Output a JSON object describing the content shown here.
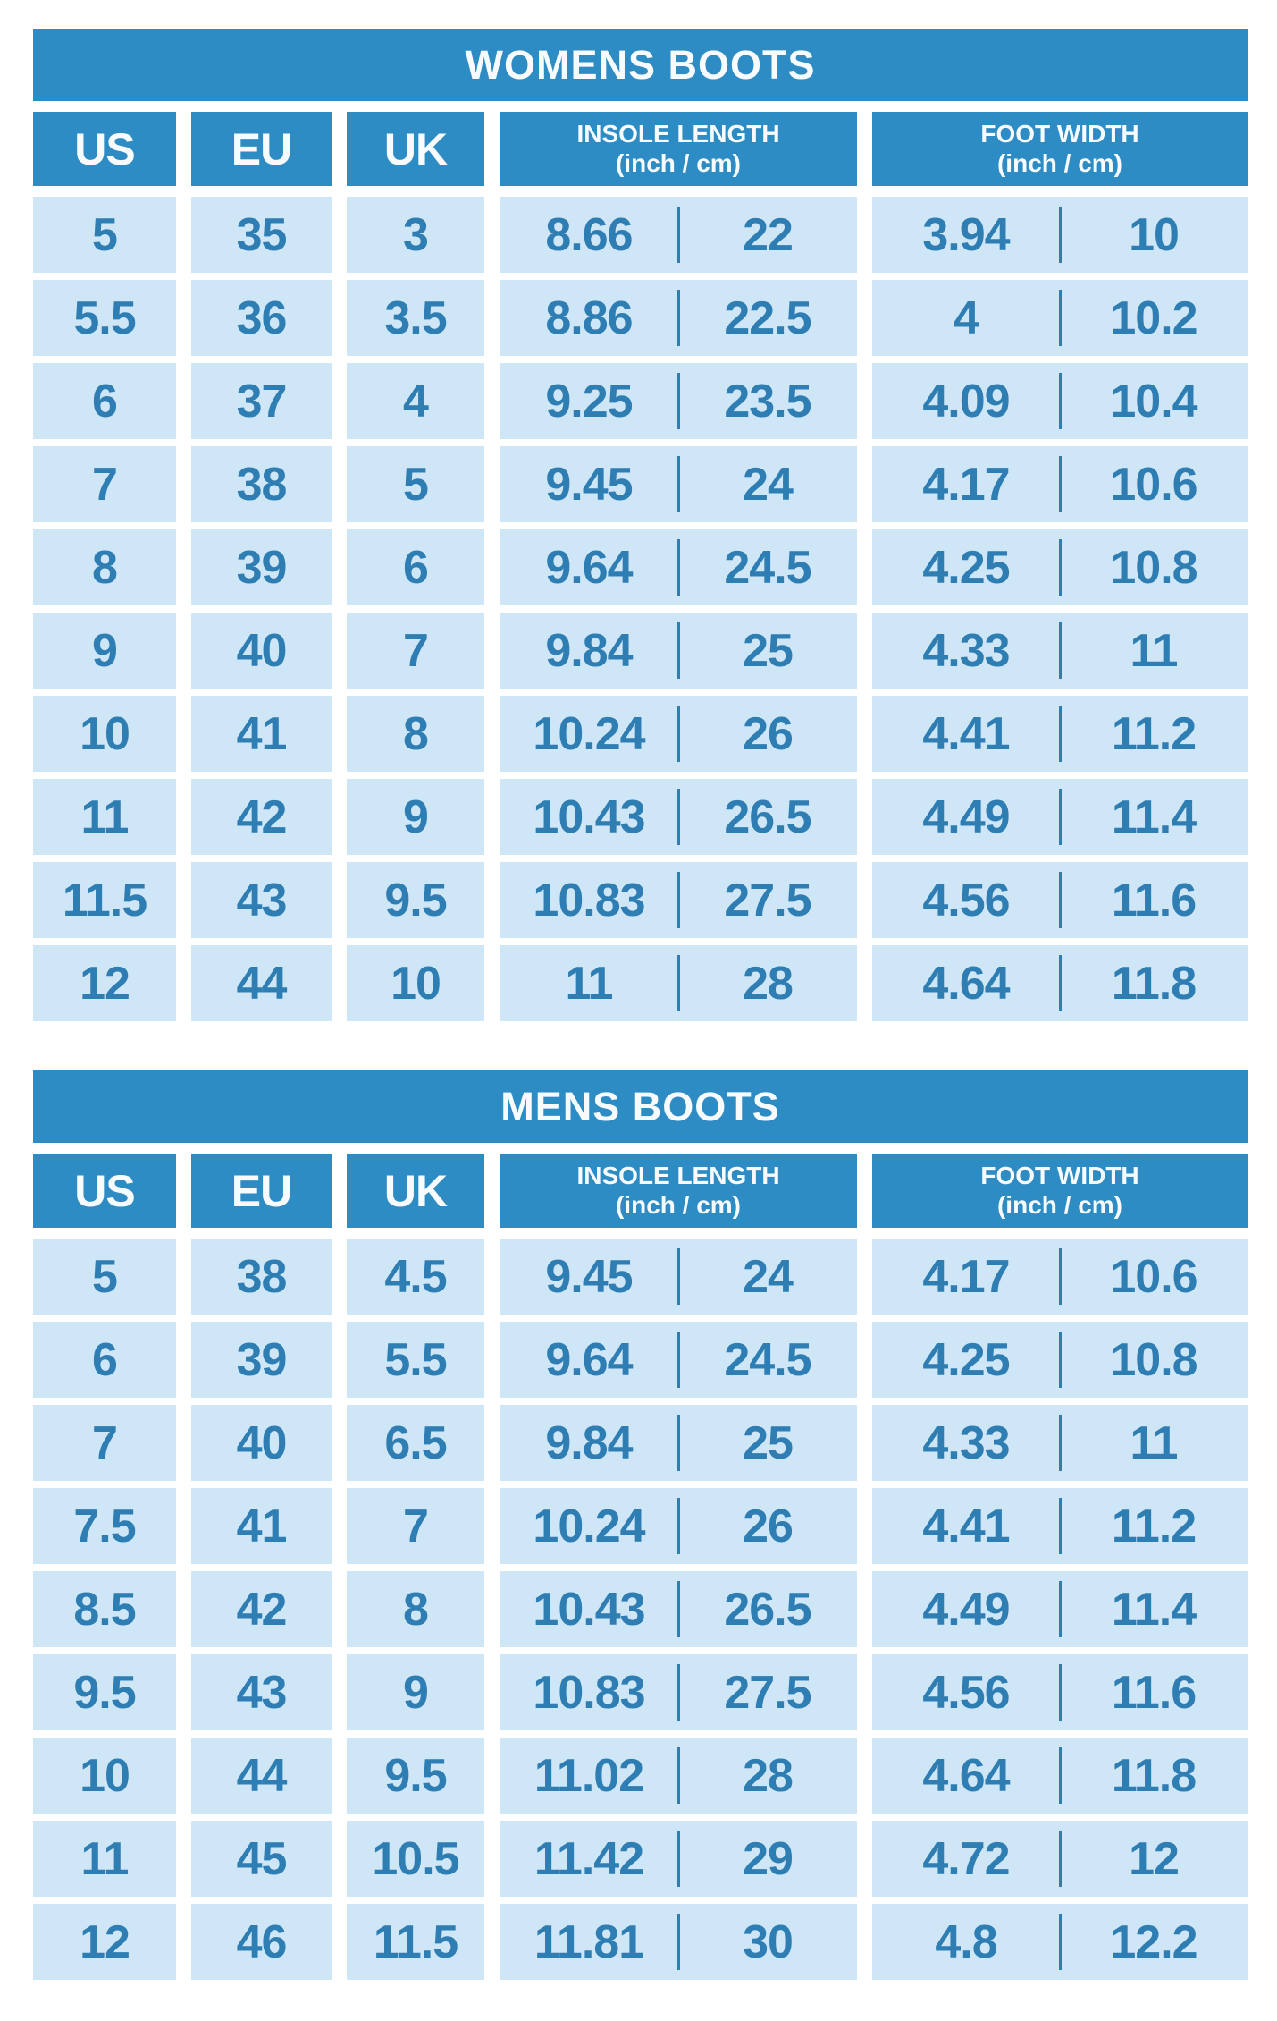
{
  "colors": {
    "header_bg": "#2e8cc4",
    "cell_bg": "#cfe6f7",
    "cell_text": "#2e7eb4",
    "header_text": "#f7fbfe",
    "divider": "#2e7eb4",
    "page_bg": "#ffffff"
  },
  "chart_data": [
    {
      "type": "table",
      "title": "WOMENS BOOTS",
      "headers": {
        "us": "US",
        "eu": "EU",
        "uk": "UK",
        "insole_title": "INSOLE LENGTH",
        "insole_unit": "(inch / cm)",
        "foot_title": "FOOT WIDTH",
        "foot_unit": "(inch / cm)"
      },
      "column_semantics": [
        "US size",
        "EU size",
        "UK size",
        "insole length inch",
        "insole length cm",
        "foot width inch",
        "foot width cm"
      ],
      "rows": [
        [
          "5",
          "35",
          "3",
          "8.66",
          "22",
          "3.94",
          "10"
        ],
        [
          "5.5",
          "36",
          "3.5",
          "8.86",
          "22.5",
          "4",
          "10.2"
        ],
        [
          "6",
          "37",
          "4",
          "9.25",
          "23.5",
          "4.09",
          "10.4"
        ],
        [
          "7",
          "38",
          "5",
          "9.45",
          "24",
          "4.17",
          "10.6"
        ],
        [
          "8",
          "39",
          "6",
          "9.64",
          "24.5",
          "4.25",
          "10.8"
        ],
        [
          "9",
          "40",
          "7",
          "9.84",
          "25",
          "4.33",
          "11"
        ],
        [
          "10",
          "41",
          "8",
          "10.24",
          "26",
          "4.41",
          "11.2"
        ],
        [
          "11",
          "42",
          "9",
          "10.43",
          "26.5",
          "4.49",
          "11.4"
        ],
        [
          "11.5",
          "43",
          "9.5",
          "10.83",
          "27.5",
          "4.56",
          "11.6"
        ],
        [
          "12",
          "44",
          "10",
          "11",
          "28",
          "4.64",
          "11.8"
        ]
      ]
    },
    {
      "type": "table",
      "title": "MENS BOOTS",
      "headers": {
        "us": "US",
        "eu": "EU",
        "uk": "UK",
        "insole_title": "INSOLE LENGTH",
        "insole_unit": "(inch / cm)",
        "foot_title": "FOOT WIDTH",
        "foot_unit": "(inch / cm)"
      },
      "column_semantics": [
        "US size",
        "EU size",
        "UK size",
        "insole length inch",
        "insole length cm",
        "foot width inch",
        "foot width cm"
      ],
      "rows": [
        [
          "5",
          "38",
          "4.5",
          "9.45",
          "24",
          "4.17",
          "10.6"
        ],
        [
          "6",
          "39",
          "5.5",
          "9.64",
          "24.5",
          "4.25",
          "10.8"
        ],
        [
          "7",
          "40",
          "6.5",
          "9.84",
          "25",
          "4.33",
          "11"
        ],
        [
          "7.5",
          "41",
          "7",
          "10.24",
          "26",
          "4.41",
          "11.2"
        ],
        [
          "8.5",
          "42",
          "8",
          "10.43",
          "26.5",
          "4.49",
          "11.4"
        ],
        [
          "9.5",
          "43",
          "9",
          "10.83",
          "27.5",
          "4.56",
          "11.6"
        ],
        [
          "10",
          "44",
          "9.5",
          "11.02",
          "28",
          "4.64",
          "11.8"
        ],
        [
          "11",
          "45",
          "10.5",
          "11.42",
          "29",
          "4.72",
          "12"
        ],
        [
          "12",
          "46",
          "11.5",
          "11.81",
          "30",
          "4.8",
          "12.2"
        ]
      ]
    }
  ]
}
